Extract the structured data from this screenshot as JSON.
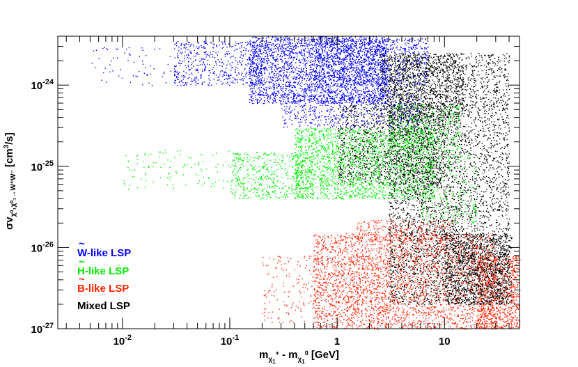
{
  "chart_data": {
    "type": "scatter",
    "title": "",
    "xlabel": "m_{χ1+} - m_{χ1^0} [GeV]",
    "ylabel": "σv_{χ1^0 χ1^0 → W+W-} [cm^3/s]",
    "x_scale": "log",
    "y_scale": "log",
    "xlim": [
      0.0025,
      50
    ],
    "ylim": [
      1e-27,
      4e-24
    ],
    "x_ticks": [
      {
        "value": 0.01,
        "base": "10",
        "exp": "-2"
      },
      {
        "value": 0.1,
        "base": "10",
        "exp": "-1"
      },
      {
        "value": 1,
        "base": "1",
        "exp": ""
      },
      {
        "value": 10,
        "base": "10",
        "exp": ""
      }
    ],
    "y_ticks": [
      {
        "value": 1e-24,
        "base": "10",
        "exp": "-24"
      },
      {
        "value": 1e-25,
        "base": "10",
        "exp": "-25"
      },
      {
        "value": 1e-26,
        "base": "10",
        "exp": "-26"
      },
      {
        "value": 1e-27,
        "base": "10",
        "exp": "-27"
      }
    ],
    "xlabel_parts": {
      "m1": "m",
      "sub1": "χ",
      "sub1b": "1",
      "sup1": "+",
      "minus": " - m",
      "sub2": "χ",
      "sub2b": "1",
      "sup2": "0",
      "unit": " [GeV]"
    },
    "ylabel_parts": {
      "sigma": "σv",
      "sub": "χ⁰₁χ⁰₁→W⁺W⁻",
      "unit": " [cm",
      "unit_sup": "3",
      "unit_end": "/s]"
    },
    "legend_position": "bottom-left",
    "series": [
      {
        "name": "W̃-like LSP",
        "label_letter": "W",
        "label_rest": "-like LSP",
        "color": "#0000ff",
        "regions": [
          {
            "x_range": [
              0.15,
              3.0
            ],
            "y_range": [
              6e-25,
              4e-24
            ],
            "count": 2600
          },
          {
            "x_range": [
              0.03,
              0.2
            ],
            "y_range": [
              1e-24,
              3.5e-24
            ],
            "count": 500
          },
          {
            "x_range": [
              0.005,
              0.05
            ],
            "y_range": [
              1e-24,
              3e-24
            ],
            "count": 80
          },
          {
            "x_range": [
              0.3,
              6.0
            ],
            "y_range": [
              3e-25,
              9e-25
            ],
            "count": 600
          },
          {
            "x_range": [
              0.6,
              7.0
            ],
            "y_range": [
              1e-24,
              3.8e-24
            ],
            "count": 900
          }
        ]
      },
      {
        "name": "H̃-like LSP",
        "label_letter": "H",
        "label_rest": "-like LSP",
        "color": "#00ee00",
        "regions": [
          {
            "x_range": [
              0.4,
              8.0
            ],
            "y_range": [
              4e-26,
              3e-25
            ],
            "count": 2200
          },
          {
            "x_range": [
              0.1,
              0.6
            ],
            "y_range": [
              4e-26,
              1.5e-25
            ],
            "count": 500
          },
          {
            "x_range": [
              0.01,
              0.12
            ],
            "y_range": [
              5e-26,
              1.6e-25
            ],
            "count": 120
          },
          {
            "x_range": [
              3.0,
              14.0
            ],
            "y_range": [
              1.5e-25,
              6e-25
            ],
            "count": 500
          },
          {
            "x_range": [
              6.0,
              20.0
            ],
            "y_range": [
              2e-26,
              1.5e-25
            ],
            "count": 300
          }
        ]
      },
      {
        "name": "B̃-like LSP",
        "label_letter": "B",
        "label_rest": "-like LSP",
        "color": "#ff2200",
        "regions": [
          {
            "x_range": [
              0.6,
              30.0
            ],
            "y_range": [
              1e-27,
              1.5e-26
            ],
            "count": 3000
          },
          {
            "x_range": [
              0.2,
              3.0
            ],
            "y_range": [
              1.2e-27,
              8e-27
            ],
            "count": 350
          },
          {
            "x_range": [
              20.0,
              50.0
            ],
            "y_range": [
              1e-27,
              8e-27
            ],
            "count": 900
          },
          {
            "x_range": [
              1.5,
              12.0
            ],
            "y_range": [
              1.2e-26,
              2.2e-26
            ],
            "count": 300
          }
        ]
      },
      {
        "name": "Mixed LSP",
        "label_letter": "",
        "label_rest": "Mixed LSP",
        "color": "#000000",
        "regions": [
          {
            "x_range": [
              3.0,
              40.0
            ],
            "y_range": [
              2e-27,
              2.5e-24
            ],
            "count": 4200
          },
          {
            "x_range": [
              10.0,
              42.0
            ],
            "y_range": [
              2e-27,
              1.5e-26
            ],
            "count": 1000
          },
          {
            "x_range": [
              1.0,
              10.0
            ],
            "y_range": [
              6e-26,
              6e-25
            ],
            "count": 1100
          },
          {
            "x_range": [
              2.5,
              15.0
            ],
            "y_range": [
              4e-25,
              2.5e-24
            ],
            "count": 900
          }
        ]
      }
    ]
  }
}
